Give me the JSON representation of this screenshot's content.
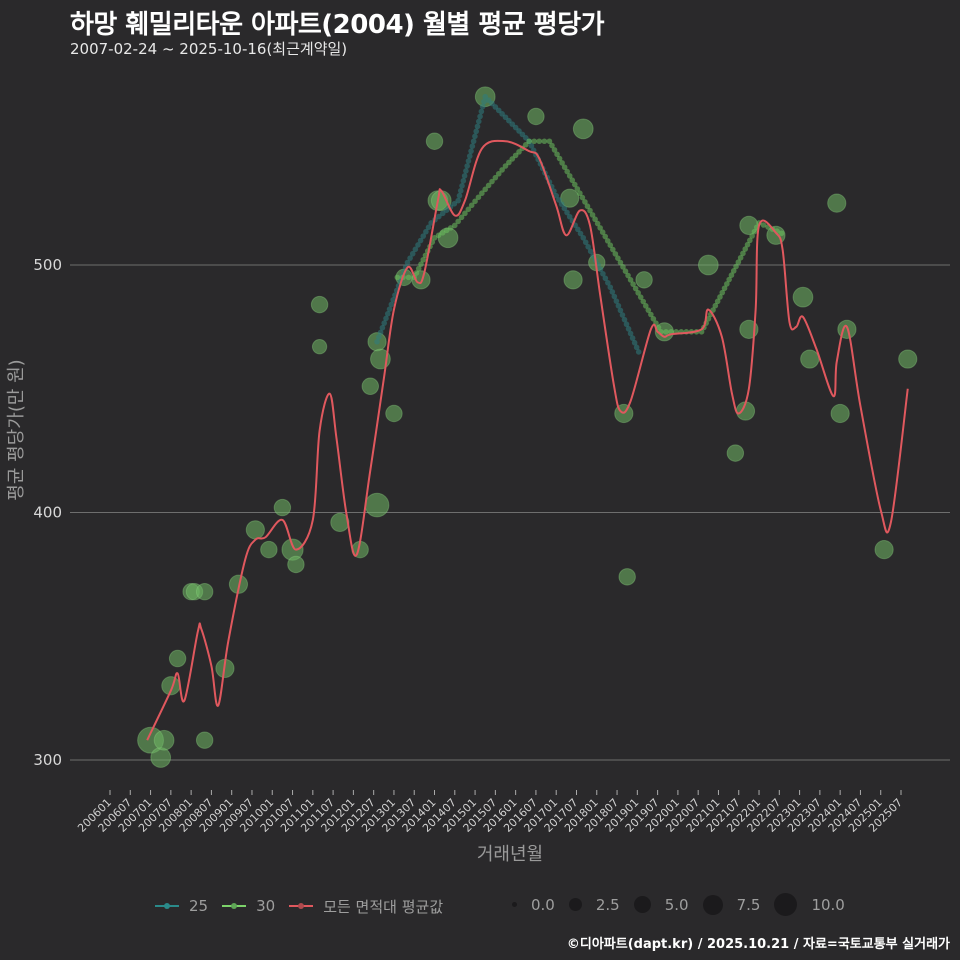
{
  "header": {
    "title": "하망 훼밀리타운 아파트(2004) 월별 평균 평당가",
    "subtitle": "2007-02-24 ~ 2025-10-16(최근계약일)"
  },
  "axes": {
    "y_title": "평균 평당가(만 원)",
    "x_title": "거래년월",
    "y_ticks": [
      "300",
      "400",
      "500"
    ],
    "x_ticks": [
      "200601",
      "200607",
      "200701",
      "200707",
      "200801",
      "200807",
      "200901",
      "200907",
      "201001",
      "201007",
      "201101",
      "201107",
      "201201",
      "201207",
      "201301",
      "201307",
      "201401",
      "201407",
      "201501",
      "201507",
      "201601",
      "201607",
      "201701",
      "201707",
      "201801",
      "201807",
      "201901",
      "201907",
      "202001",
      "202007",
      "202101",
      "202107",
      "202201",
      "202207",
      "202301",
      "202307",
      "202401",
      "202407",
      "202501",
      "202507"
    ]
  },
  "legend": {
    "series": [
      {
        "label": "25",
        "color": "#2a8a8a"
      },
      {
        "label": "30",
        "color": "#7cd36a"
      },
      {
        "label": "모든 면적대 평균값",
        "color": "#e0585e"
      }
    ],
    "sizes": [
      "0.0",
      "2.5",
      "5.0",
      "7.5",
      "10.0"
    ]
  },
  "footer": "©디아파트(dapt.kr) / 2025.10.21 / 자료=국토교통부 실거래가",
  "colors": {
    "background": "#2a292b",
    "grid": "#6e6e6e",
    "series25": "#2a8a8a",
    "series30": "#7cd36a",
    "average": "#e0585e",
    "bubble": "#6fb865"
  },
  "chart_data": {
    "type": "line",
    "title": "하망 훼밀리타운 아파트(2004) 월별 평균 평당가",
    "subtitle": "2007-02-24 ~ 2025-10-16(최근계약일)",
    "xlabel": "거래년월",
    "ylabel": "평균 평당가(만 원)",
    "ylim": [
      285,
      575
    ],
    "y_gridlines": [
      300,
      400,
      500
    ],
    "legend_position": "bottom",
    "x_start": "2006-01",
    "x_end": "2025-07",
    "series": [
      {
        "name": "모든 면적대 평균값",
        "type": "line",
        "points": [
          [
            11,
            308
          ],
          [
            18,
            328
          ],
          [
            20,
            335
          ],
          [
            22,
            324
          ],
          [
            26,
            352
          ],
          [
            27,
            353
          ],
          [
            30,
            338
          ],
          [
            32,
            322
          ],
          [
            35,
            348
          ],
          [
            40,
            381
          ],
          [
            43,
            389
          ],
          [
            46,
            390
          ],
          [
            51,
            397
          ],
          [
            55,
            385
          ],
          [
            60,
            397
          ],
          [
            62,
            433
          ],
          [
            65,
            448
          ],
          [
            67,
            430
          ],
          [
            70,
            399
          ],
          [
            73,
            383
          ],
          [
            77,
            417
          ],
          [
            81,
            454
          ],
          [
            84,
            482
          ],
          [
            88,
            499
          ],
          [
            91,
            493
          ],
          [
            93,
            497
          ],
          [
            97,
            526
          ],
          [
            98,
            530
          ],
          [
            102,
            520
          ],
          [
            105,
            526
          ],
          [
            110,
            547
          ],
          [
            117,
            550
          ],
          [
            124,
            546
          ],
          [
            127,
            543
          ],
          [
            132,
            524
          ],
          [
            135,
            512
          ],
          [
            139,
            522
          ],
          [
            142,
            516
          ],
          [
            145,
            488
          ],
          [
            149,
            452
          ],
          [
            151,
            441
          ],
          [
            154,
            445
          ],
          [
            160,
            474
          ],
          [
            162,
            473
          ],
          [
            164,
            471
          ],
          [
            166,
            472
          ],
          [
            175,
            474
          ],
          [
            177,
            482
          ],
          [
            181,
            471
          ],
          [
            184,
            448
          ],
          [
            186,
            440
          ],
          [
            189,
            450
          ],
          [
            191,
            482
          ],
          [
            192,
            516
          ],
          [
            197,
            513
          ],
          [
            199,
            506
          ],
          [
            201,
            477
          ],
          [
            203,
            475
          ],
          [
            205,
            479
          ],
          [
            209,
            466
          ],
          [
            214,
            447
          ],
          [
            215,
            461
          ],
          [
            218,
            475
          ],
          [
            222,
            443
          ],
          [
            228,
            401
          ],
          [
            231,
            396
          ],
          [
            236,
            450
          ]
        ]
      },
      {
        "name": "25",
        "type": "line",
        "points": [
          [
            79,
            469
          ],
          [
            88,
            501
          ],
          [
            95,
            517
          ],
          [
            103,
            526
          ],
          [
            111,
            568
          ],
          [
            124,
            550
          ],
          [
            132,
            528
          ],
          [
            140,
            511
          ],
          [
            148,
            491
          ],
          [
            157,
            463
          ]
        ]
      },
      {
        "name": "30",
        "type": "line",
        "points": [
          [
            85,
            495
          ],
          [
            90,
            495
          ],
          [
            96,
            511
          ],
          [
            102,
            516
          ],
          [
            110,
            529
          ],
          [
            117,
            540
          ],
          [
            124,
            550
          ],
          [
            130,
            550
          ],
          [
            163,
            473
          ],
          [
            175,
            473
          ],
          [
            192,
            517
          ],
          [
            200,
            512
          ]
        ]
      },
      {
        "name": "transactions (bubbles, size=count)",
        "type": "scatter",
        "points": [
          [
            12,
            308,
            10
          ],
          [
            15,
            301,
            5
          ],
          [
            16,
            308,
            5
          ],
          [
            18,
            330,
            4
          ],
          [
            20,
            341,
            3
          ],
          [
            24,
            368,
            3
          ],
          [
            25,
            368,
            3
          ],
          [
            28,
            368,
            3
          ],
          [
            28,
            308,
            3
          ],
          [
            34,
            337,
            4
          ],
          [
            38,
            371,
            4
          ],
          [
            43,
            393,
            4
          ],
          [
            47,
            385,
            3
          ],
          [
            51,
            402,
            3
          ],
          [
            54,
            385,
            6
          ],
          [
            55,
            379,
            3
          ],
          [
            62,
            484,
            3
          ],
          [
            62,
            467,
            2
          ],
          [
            68,
            396,
            4
          ],
          [
            74,
            385,
            3
          ],
          [
            77,
            451,
            3
          ],
          [
            79,
            469,
            4
          ],
          [
            80,
            462,
            5
          ],
          [
            79,
            403,
            8
          ],
          [
            84,
            440,
            3
          ],
          [
            87,
            495,
            3
          ],
          [
            92,
            494,
            4
          ],
          [
            96,
            550,
            3
          ],
          [
            97,
            526,
            5
          ],
          [
            98,
            526,
            5
          ],
          [
            100,
            511,
            5
          ],
          [
            111,
            568,
            5
          ],
          [
            126,
            560,
            3
          ],
          [
            140,
            555,
            5
          ],
          [
            136,
            527,
            4
          ],
          [
            137,
            494,
            4
          ],
          [
            144,
            501,
            3
          ],
          [
            152,
            440,
            4
          ],
          [
            153,
            374,
            3
          ],
          [
            158,
            494,
            3
          ],
          [
            164,
            473,
            4
          ],
          [
            177,
            500,
            5
          ],
          [
            185,
            424,
            3
          ],
          [
            188,
            441,
            4
          ],
          [
            189,
            474,
            4
          ],
          [
            189,
            516,
            4
          ],
          [
            197,
            512,
            4
          ],
          [
            205,
            487,
            5
          ],
          [
            207,
            462,
            4
          ],
          [
            215,
            525,
            4
          ],
          [
            216,
            440,
            4
          ],
          [
            218,
            474,
            4
          ],
          [
            229,
            385,
            4
          ],
          [
            236,
            462,
            4
          ]
        ]
      }
    ],
    "size_legend": [
      0.0,
      2.5,
      5.0,
      7.5,
      10.0
    ]
  }
}
